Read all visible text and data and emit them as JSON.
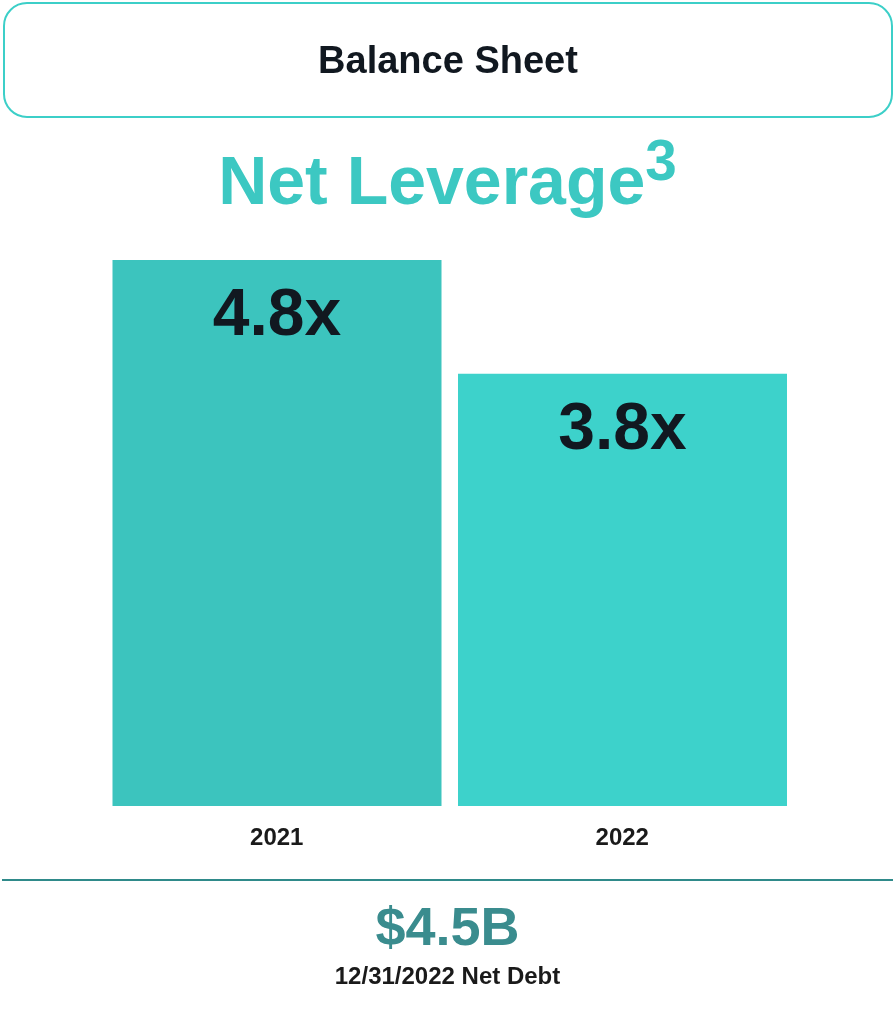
{
  "chart_data": {
    "type": "bar",
    "title": "Balance Sheet",
    "subtitle": "Net Leverage$^{3}$",
    "categories": [
      "2021",
      "2022"
    ],
    "values": [
      4.8,
      3.8
    ],
    "value_labels": [
      "4.8x",
      "3.8x"
    ],
    "colors": [
      "#3cc4be",
      "#3dd2cb"
    ],
    "annotations": [
      "$4.5B",
      "12/31/2022 Net Debt"
    ]
  }
}
